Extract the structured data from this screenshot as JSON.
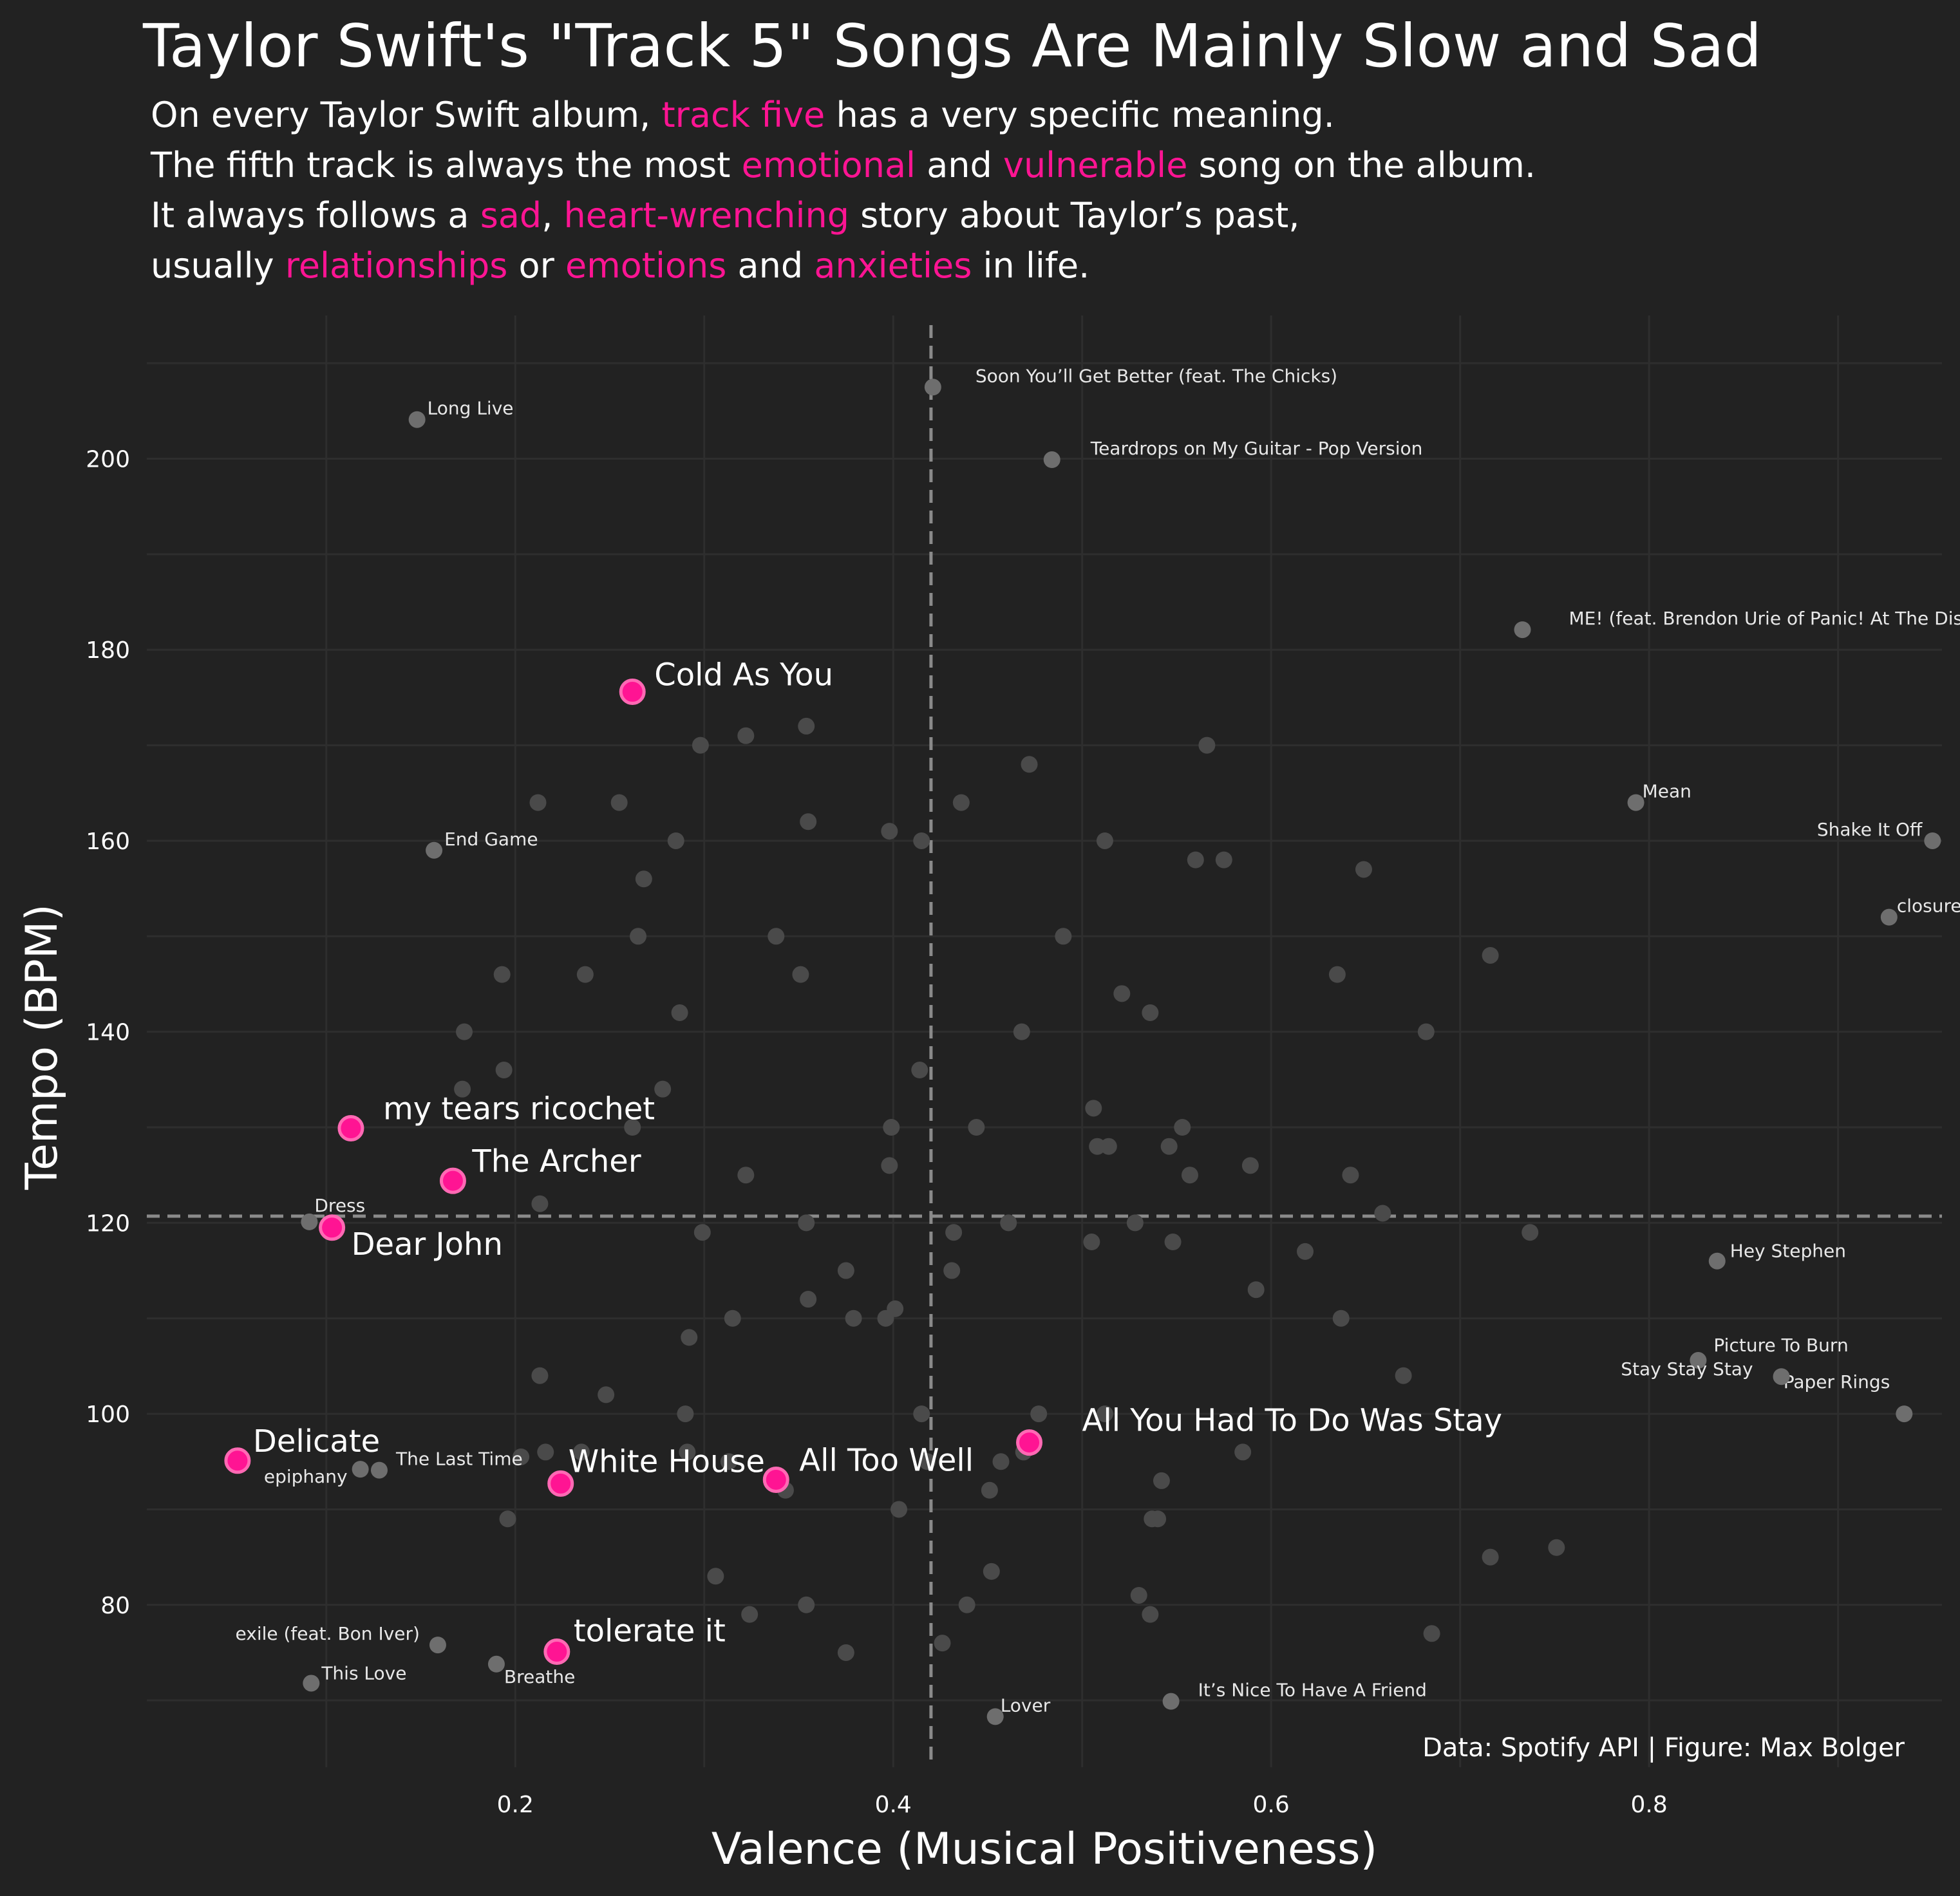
{
  "subtitle_lines": [
    [
      {
        "t": "On every Taylor Swift album, "
      },
      {
        "t": "track five",
        "h": 1
      },
      {
        "t": " has a very specific meaning."
      }
    ],
    [
      {
        "t": "The fifth track is always the most "
      },
      {
        "t": "emotional",
        "h": 1
      },
      {
        "t": " and "
      },
      {
        "t": "vulnerable",
        "h": 1
      },
      {
        "t": " song on the album."
      }
    ],
    [
      {
        "t": "It always follows a "
      },
      {
        "t": "sad",
        "h": 1
      },
      {
        "t": ", "
      },
      {
        "t": "heart-wrenching",
        "h": 1
      },
      {
        "t": " story about Taylor’s past,"
      }
    ],
    [
      {
        "t": "usually "
      },
      {
        "t": "relationships",
        "h": 1
      },
      {
        "t": " or "
      },
      {
        "t": "emotions",
        "h": 1
      },
      {
        "t": " and "
      },
      {
        "t": "anxieties",
        "h": 1
      },
      {
        "t": " in life."
      }
    ]
  ],
  "colors": {
    "background": "#222222",
    "grid": "#2e2e2e",
    "other": "#6e6e6e",
    "track5": "#ff1493"
  },
  "chart_data": {
    "type": "scatter",
    "title": "Taylor Swift's \"Track 5\" Songs Are Mainly Slow and Sad",
    "xlabel": "Valence (Musical Positiveness)",
    "ylabel": "Tempo (BPM)",
    "caption": "Data: Spotify API | Figure: Max Bolger",
    "xlim": [
      0.005,
      0.955
    ],
    "ylim": [
      63,
      215
    ],
    "xticks": [
      0.2,
      0.4,
      0.6,
      0.8
    ],
    "yticks": [
      80,
      100,
      120,
      140,
      160,
      180,
      200
    ],
    "grid": true,
    "reference_lines": {
      "x": 0.42,
      "y": 120.7
    },
    "track5": [
      {
        "name": "Cold As You",
        "x": 0.262,
        "y": 175.6
      },
      {
        "name": "my tears ricochet",
        "x": 0.113,
        "y": 129.9
      },
      {
        "name": "The Archer",
        "x": 0.167,
        "y": 124.4
      },
      {
        "name": "Dear John",
        "x": 0.103,
        "y": 119.5
      },
      {
        "name": "Delicate",
        "x": 0.053,
        "y": 95.1
      },
      {
        "name": "White House",
        "x": 0.224,
        "y": 92.7
      },
      {
        "name": "All Too Well",
        "x": 0.338,
        "y": 93.1
      },
      {
        "name": "All You Had To Do Was Stay",
        "x": 0.472,
        "y": 97.0
      },
      {
        "name": "tolerate it",
        "x": 0.222,
        "y": 75.1
      }
    ],
    "labeled": [
      {
        "name": "Long Live",
        "x": 0.148,
        "y": 204.1
      },
      {
        "name": "Soon You’ll Get Better (feat. The Chicks)",
        "x": 0.421,
        "y": 207.5
      },
      {
        "name": "Teardrops on My Guitar - Pop Version",
        "x": 0.484,
        "y": 199.9
      },
      {
        "name": "ME! (feat. Brendon Urie of Panic! At The Disco)",
        "x": 0.733,
        "y": 182.1
      },
      {
        "name": "Mean",
        "x": 0.793,
        "y": 164.0
      },
      {
        "name": "Shake It Off",
        "x": 0.95,
        "y": 160.0
      },
      {
        "name": "closure",
        "x": 0.927,
        "y": 152.0
      },
      {
        "name": "End Game",
        "x": 0.157,
        "y": 159.0
      },
      {
        "name": "Dress",
        "x": 0.091,
        "y": 120.1
      },
      {
        "name": "Hey Stephen",
        "x": 0.836,
        "y": 116.0
      },
      {
        "name": "Picture To Burn",
        "x": 0.826,
        "y": 105.6
      },
      {
        "name": "Paper Rings",
        "x": 0.935,
        "y": 100.0
      },
      {
        "name": "Stay Stay Stay",
        "x": 0.87,
        "y": 103.9
      },
      {
        "name": "The Last Time",
        "x": 0.128,
        "y": 94.1
      },
      {
        "name": "epiphany",
        "x": 0.118,
        "y": 94.2
      },
      {
        "name": "exile (feat. Bon Iver)",
        "x": 0.159,
        "y": 75.8
      },
      {
        "name": "This Love",
        "x": 0.092,
        "y": 71.8
      },
      {
        "name": "Breathe",
        "x": 0.19,
        "y": 73.8
      },
      {
        "name": "Lover",
        "x": 0.454,
        "y": 68.3
      },
      {
        "name": "It’s Nice To Have A Friend",
        "x": 0.547,
        "y": 69.9
      }
    ],
    "others": [
      [
        0.212,
        164
      ],
      [
        0.255,
        164
      ],
      [
        0.298,
        170
      ],
      [
        0.322,
        171
      ],
      [
        0.354,
        172
      ],
      [
        0.436,
        164
      ],
      [
        0.472,
        168
      ],
      [
        0.566,
        170
      ],
      [
        0.285,
        160
      ],
      [
        0.268,
        156
      ],
      [
        0.355,
        162
      ],
      [
        0.398,
        161
      ],
      [
        0.415,
        160
      ],
      [
        0.512,
        160
      ],
      [
        0.56,
        158
      ],
      [
        0.575,
        158
      ],
      [
        0.649,
        157
      ],
      [
        0.265,
        150
      ],
      [
        0.338,
        150
      ],
      [
        0.49,
        150
      ],
      [
        0.193,
        146
      ],
      [
        0.237,
        146
      ],
      [
        0.351,
        146
      ],
      [
        0.521,
        144
      ],
      [
        0.536,
        142
      ],
      [
        0.287,
        142
      ],
      [
        0.635,
        146
      ],
      [
        0.716,
        148
      ],
      [
        0.173,
        140
      ],
      [
        0.468,
        140
      ],
      [
        0.682,
        140
      ],
      [
        0.194,
        136
      ],
      [
        0.172,
        134
      ],
      [
        0.278,
        134
      ],
      [
        0.414,
        136
      ],
      [
        0.262,
        130
      ],
      [
        0.399,
        130
      ],
      [
        0.444,
        130
      ],
      [
        0.506,
        132
      ],
      [
        0.508,
        128
      ],
      [
        0.514,
        128
      ],
      [
        0.553,
        130
      ],
      [
        0.546,
        128
      ],
      [
        0.398,
        126
      ],
      [
        0.322,
        125
      ],
      [
        0.557,
        125
      ],
      [
        0.589,
        126
      ],
      [
        0.642,
        125
      ],
      [
        0.213,
        122
      ],
      [
        0.299,
        119
      ],
      [
        0.354,
        120
      ],
      [
        0.432,
        119
      ],
      [
        0.461,
        120
      ],
      [
        0.528,
        120
      ],
      [
        0.659,
        121
      ],
      [
        0.737,
        119
      ],
      [
        0.505,
        118
      ],
      [
        0.548,
        118
      ],
      [
        0.618,
        117
      ],
      [
        0.375,
        115
      ],
      [
        0.431,
        115
      ],
      [
        0.355,
        112
      ],
      [
        0.592,
        113
      ],
      [
        0.315,
        110
      ],
      [
        0.379,
        110
      ],
      [
        0.396,
        110
      ],
      [
        0.401,
        111
      ],
      [
        0.637,
        110
      ],
      [
        0.292,
        108
      ],
      [
        0.213,
        104
      ],
      [
        0.67,
        104
      ],
      [
        0.248,
        102
      ],
      [
        0.29,
        100
      ],
      [
        0.415,
        100
      ],
      [
        0.477,
        100
      ],
      [
        0.512,
        100
      ],
      [
        0.203,
        95.5
      ],
      [
        0.216,
        96
      ],
      [
        0.235,
        96
      ],
      [
        0.291,
        96
      ],
      [
        0.313,
        95
      ],
      [
        0.418,
        95
      ],
      [
        0.457,
        95
      ],
      [
        0.469,
        96
      ],
      [
        0.585,
        96
      ],
      [
        0.343,
        92
      ],
      [
        0.451,
        92
      ],
      [
        0.542,
        93
      ],
      [
        0.196,
        89
      ],
      [
        0.403,
        90
      ],
      [
        0.537,
        89
      ],
      [
        0.54,
        89
      ],
      [
        0.306,
        83
      ],
      [
        0.452,
        83.5
      ],
      [
        0.53,
        81
      ],
      [
        0.716,
        85
      ],
      [
        0.751,
        86
      ],
      [
        0.324,
        79
      ],
      [
        0.354,
        80
      ],
      [
        0.439,
        80
      ],
      [
        0.536,
        79
      ],
      [
        0.375,
        75
      ],
      [
        0.426,
        76
      ],
      [
        0.685,
        77
      ]
    ]
  }
}
